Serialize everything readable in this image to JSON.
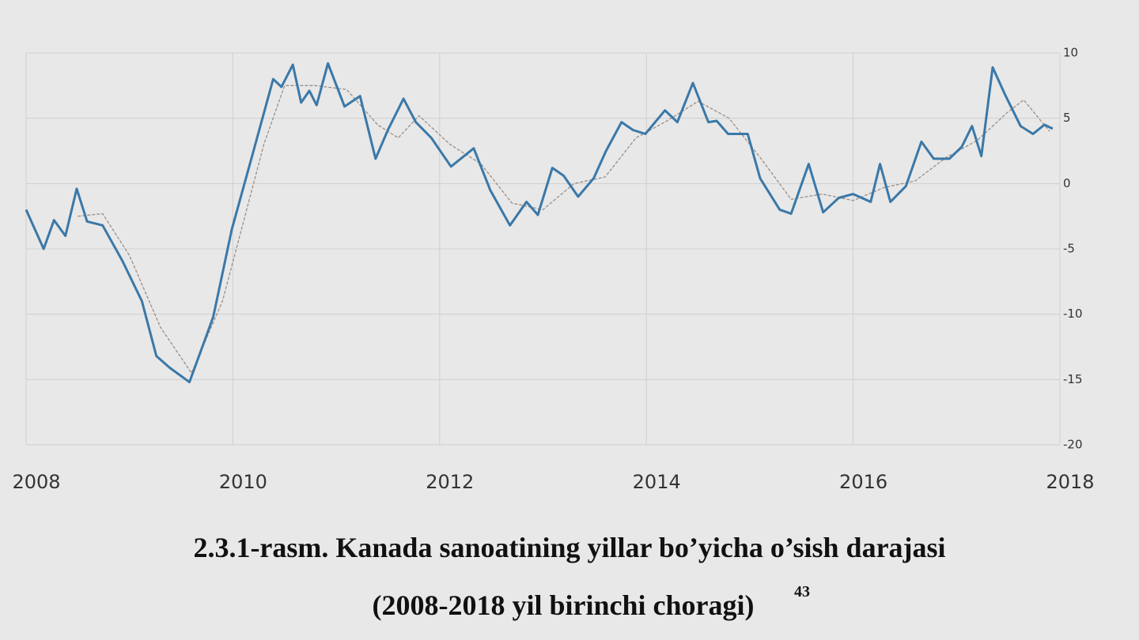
{
  "chart_data": {
    "type": "line",
    "caption": "2.3.1-rasm. Kanada sanoatining yillar bo’yicha o’sish darajasi",
    "caption2": "(2008-2018 yil birinchi choragi)",
    "footnote": "43",
    "xlim": [
      2008,
      2018
    ],
    "xticks": [
      2008,
      2010,
      2012,
      2014,
      2016,
      2018
    ],
    "ylim": [
      -20,
      10
    ],
    "yticks": [
      10,
      5,
      0,
      -5,
      -10,
      -15,
      -20
    ],
    "grid": true,
    "series": [
      {
        "color": "#3a78a8",
        "width": 3,
        "x": [
          2008.0,
          2008.17,
          2008.27,
          2008.38,
          2008.49,
          2008.59,
          2008.74,
          2008.93,
          2009.12,
          2009.26,
          2009.39,
          2009.58,
          2009.7,
          2009.81,
          2009.99,
          2010.2,
          2010.39,
          2010.47,
          2010.58,
          2010.66,
          2010.74,
          2010.81,
          2010.92,
          2011.08,
          2011.23,
          2011.38,
          2011.5,
          2011.65,
          2011.77,
          2011.92,
          2012.11,
          2012.33,
          2012.49,
          2012.68,
          2012.84,
          2012.95,
          2013.09,
          2013.2,
          2013.34,
          2013.49,
          2013.61,
          2013.76,
          2013.87,
          2013.99,
          2014.18,
          2014.3,
          2014.45,
          2014.6,
          2014.68,
          2014.79,
          2014.98,
          2015.1,
          2015.29,
          2015.4,
          2015.57,
          2015.71,
          2015.86,
          2016.0,
          2016.17,
          2016.26,
          2016.36,
          2016.51,
          2016.66,
          2016.78,
          2016.93,
          2017.05,
          2017.15,
          2017.24,
          2017.35,
          2017.47,
          2017.62,
          2017.74,
          2017.85,
          2017.93
        ],
        "values": [
          -2,
          -5,
          -2.8,
          -4,
          -0.4,
          -2.9,
          -3.2,
          -5.9,
          -9,
          -13.2,
          -14.1,
          -15.2,
          -12.6,
          -10.2,
          -3.5,
          2.5,
          8,
          7.4,
          9.1,
          6.2,
          7.1,
          6,
          9.2,
          5.9,
          6.7,
          1.9,
          4.1,
          6.5,
          4.7,
          3.5,
          1.3,
          2.7,
          -0.5,
          -3.2,
          -1.4,
          -2.4,
          1.2,
          0.6,
          -1,
          0.4,
          2.5,
          4.7,
          4.1,
          3.8,
          5.6,
          4.7,
          7.7,
          4.7,
          4.8,
          3.8,
          3.8,
          0.4,
          -2,
          -2.3,
          1.5,
          -2.2,
          -1.1,
          -0.8,
          -1.4,
          1.5,
          -1.4,
          -0.2,
          3.2,
          1.9,
          1.9,
          2.8,
          4.4,
          2.1,
          8.9,
          6.8,
          4.4,
          3.8,
          4.5,
          4.2
        ]
      },
      {
        "color": "#9a8f88",
        "width": 1.3,
        "x": [
          2008.5,
          2008.74,
          2009.0,
          2009.3,
          2009.6,
          2009.9,
          2010.1,
          2010.3,
          2010.5,
          2010.8,
          2011.1,
          2011.4,
          2011.6,
          2011.8,
          2012.1,
          2012.4,
          2012.7,
          2013.0,
          2013.3,
          2013.6,
          2013.9,
          2014.2,
          2014.5,
          2014.8,
          2015.1,
          2015.4,
          2015.7,
          2016.0,
          2016.3,
          2016.6,
          2016.9,
          2017.2,
          2017.5,
          2017.65,
          2017.9
        ],
        "values": [
          -2.5,
          -2.3,
          -5.5,
          -11,
          -14.5,
          -9,
          -3,
          3,
          7.5,
          7.5,
          7.2,
          4.5,
          3.5,
          5.2,
          3,
          1.5,
          -1.5,
          -2,
          0,
          0.5,
          3.5,
          4.8,
          6.3,
          5,
          2,
          -1.2,
          -0.8,
          -1.3,
          -0.3,
          0.2,
          2,
          3.3,
          5.5,
          6.4,
          4
        ]
      }
    ]
  }
}
